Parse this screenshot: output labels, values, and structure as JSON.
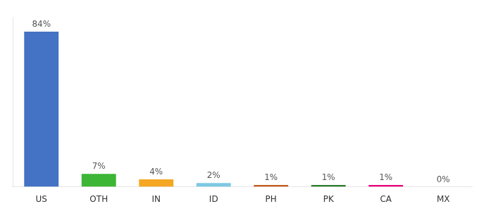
{
  "chart_data": {
    "type": "bar",
    "categories": [
      "US",
      "OTH",
      "IN",
      "ID",
      "PH",
      "PK",
      "CA",
      "MX"
    ],
    "values": [
      84,
      7,
      4,
      2,
      1,
      1,
      1,
      0
    ],
    "value_labels": [
      "84%",
      "7%",
      "4%",
      "2%",
      "1%",
      "1%",
      "1%",
      "0%"
    ],
    "colors": [
      "#4472c4",
      "#3db535",
      "#f5a623",
      "#7ec8e3",
      "#c45a1a",
      "#2d7a2d",
      "#e8007a",
      "#888888"
    ],
    "ylim": [
      0,
      92
    ],
    "grid": false,
    "data_labels": true,
    "tick_labels": "x"
  }
}
